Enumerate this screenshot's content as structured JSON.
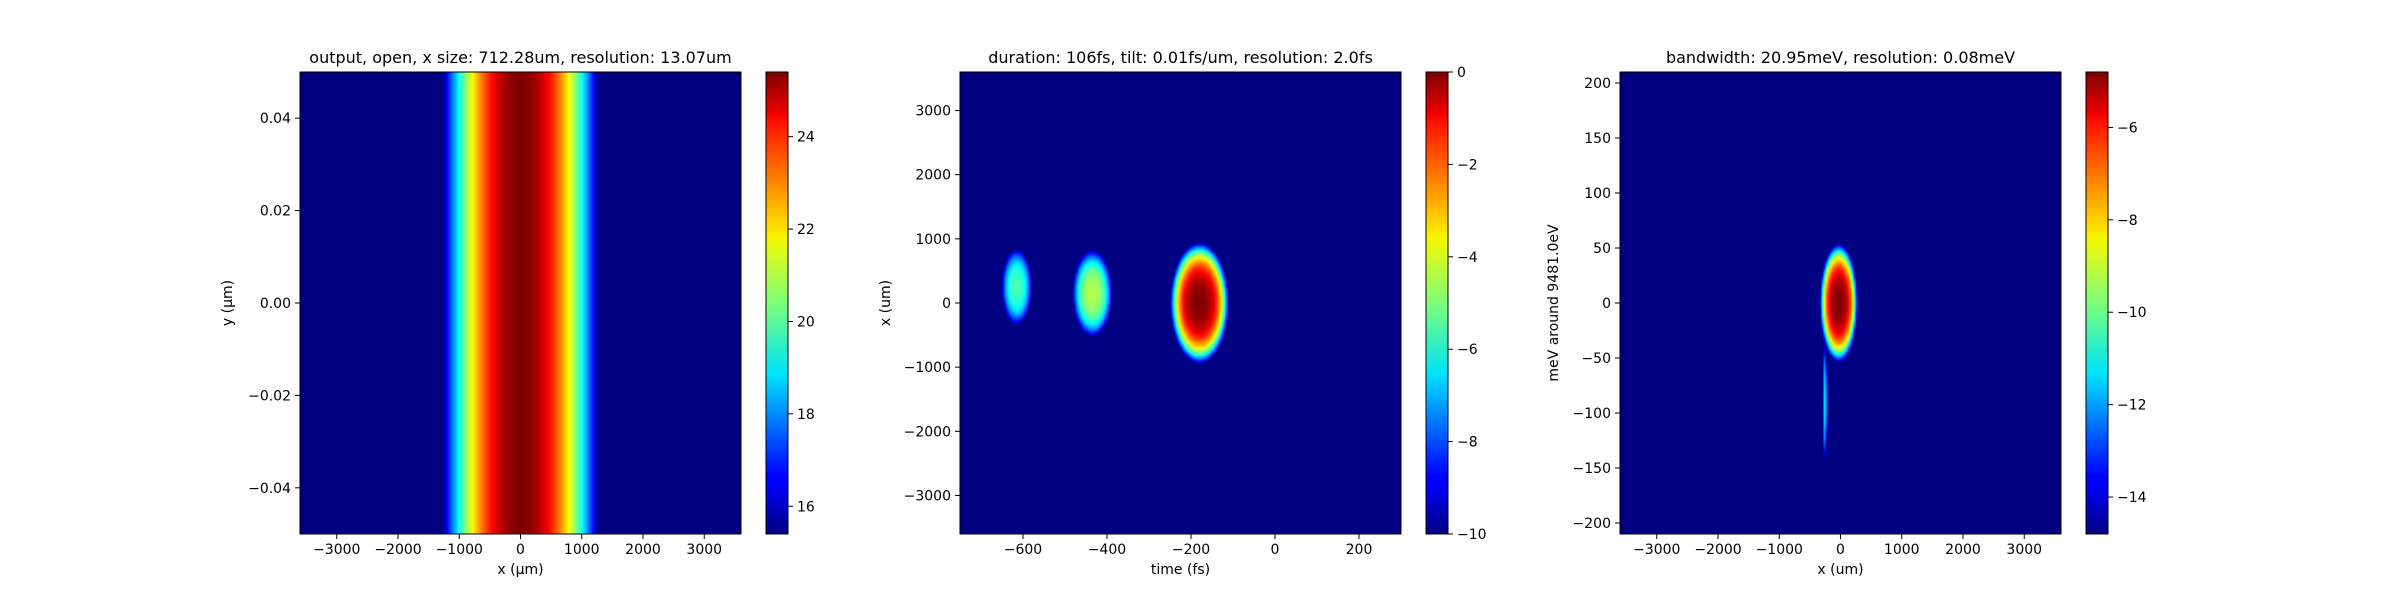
{
  "chart_data": [
    {
      "type": "heatmap",
      "title": "output, open, x size: 712.28um, resolution: 13.07um",
      "xlabel": "x (μm)",
      "ylabel": "y (μm)",
      "xlim": [
        -3600,
        3600
      ],
      "ylim": [
        -0.05,
        0.05
      ],
      "xticks": [
        -3000,
        -2000,
        -1000,
        0,
        1000,
        2000,
        3000
      ],
      "xtick_labels": [
        "−3000",
        "−2000",
        "−1000",
        "0",
        "1000",
        "2000",
        "3000"
      ],
      "yticks": [
        -0.04,
        -0.02,
        0.0,
        0.02,
        0.04
      ],
      "ytick_labels": [
        "−0.04",
        "−0.02",
        "0.00",
        "0.02",
        "0.04"
      ],
      "colorbar": {
        "range": [
          15.4,
          25.4
        ],
        "ticks": [
          16,
          18,
          20,
          22,
          24
        ],
        "tick_labels": [
          "16",
          "18",
          "20",
          "22",
          "24"
        ]
      },
      "background_level": 15.4,
      "features": [
        {
          "shape": "vertical-band",
          "center_x": 0,
          "sigma_x": 600,
          "cutoff_x": 1350,
          "peak": 25.4
        }
      ]
    },
    {
      "type": "heatmap",
      "title": "duration: 106fs, tilt: 0.01fs/um, resolution: 2.0fs",
      "xlabel": "time (fs)",
      "ylabel": "x (um)",
      "xlim": [
        -750,
        300
      ],
      "ylim": [
        -3600,
        3600
      ],
      "xticks": [
        -600,
        -400,
        -200,
        0,
        200
      ],
      "xtick_labels": [
        "−600",
        "−400",
        "−200",
        "0",
        "200"
      ],
      "yticks": [
        -3000,
        -2000,
        -1000,
        0,
        1000,
        2000,
        3000
      ],
      "ytick_labels": [
        "−3000",
        "−2000",
        "−1000",
        "0",
        "1000",
        "2000",
        "3000"
      ],
      "colorbar": {
        "range": [
          -10,
          0
        ],
        "ticks": [
          -10,
          -8,
          -6,
          -4,
          -2,
          0
        ],
        "tick_labels": [
          "−10",
          "−8",
          "−6",
          "−4",
          "−2",
          "0"
        ]
      },
      "background_level": -10,
      "features": [
        {
          "shape": "blob",
          "center_x": -180,
          "center_y": 0,
          "sigma_x": 52,
          "sigma_y": 700,
          "peak": 0
        },
        {
          "shape": "blob",
          "center_x": -435,
          "center_y": 150,
          "sigma_x": 42,
          "sigma_y": 600,
          "peak": -4.5
        },
        {
          "shape": "blob",
          "center_x": -615,
          "center_y": 250,
          "sigma_x": 34,
          "sigma_y": 560,
          "peak": -5.5
        }
      ]
    },
    {
      "type": "heatmap",
      "title": "bandwidth: 20.95meV, resolution: 0.08meV",
      "xlabel": "x (um)",
      "ylabel": "meV around 9481.0eV",
      "xlim": [
        -3600,
        3600
      ],
      "ylim": [
        -210,
        210
      ],
      "xticks": [
        -3000,
        -2000,
        -1000,
        0,
        1000,
        2000,
        3000
      ],
      "xtick_labels": [
        "−3000",
        "−2000",
        "−1000",
        "0",
        "1000",
        "2000",
        "3000"
      ],
      "yticks": [
        -200,
        -150,
        -100,
        -50,
        0,
        50,
        100,
        150,
        200
      ],
      "ytick_labels": [
        "−200",
        "−150",
        "−100",
        "−50",
        "0",
        "50",
        "100",
        "150",
        "200"
      ],
      "colorbar": {
        "range": [
          -14.8,
          -4.8
        ],
        "ticks": [
          -14,
          -12,
          -10,
          -8,
          -6
        ],
        "tick_labels": [
          "−14",
          "−12",
          "−10",
          "−8",
          "−6"
        ]
      },
      "background_level": -14.8,
      "features": [
        {
          "shape": "blob",
          "center_x": -30,
          "center_y": 0,
          "sigma_x": 230,
          "sigma_y": 40,
          "peak": -4.8
        },
        {
          "shape": "streak",
          "center_x": -250,
          "center_y": -90,
          "sigma_x": 30,
          "sigma_y": 55,
          "peak": -11
        }
      ]
    }
  ]
}
